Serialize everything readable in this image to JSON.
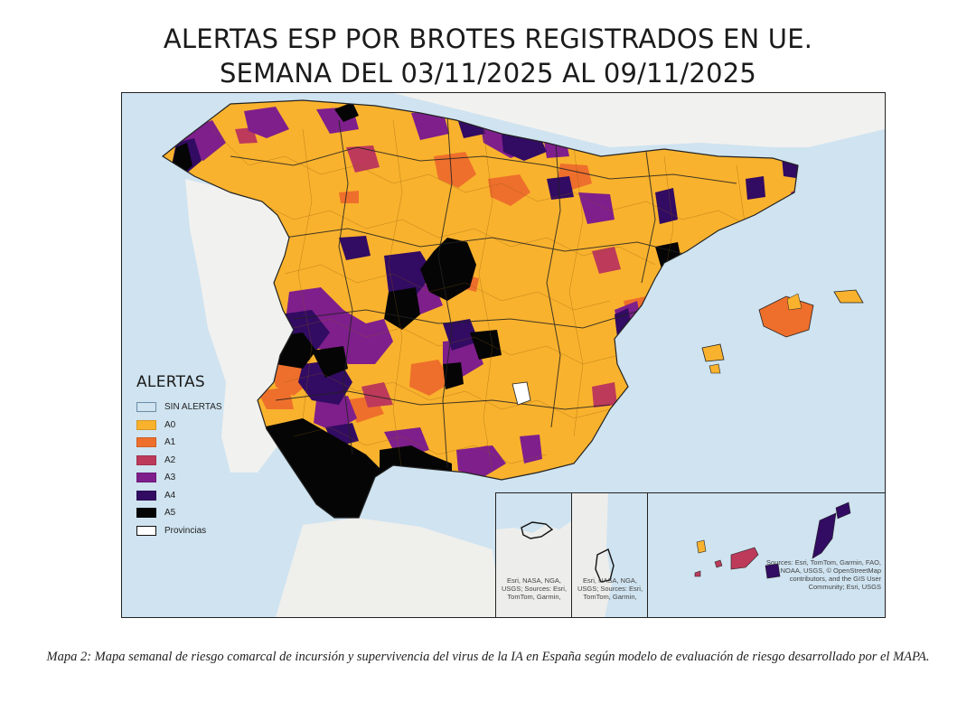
{
  "title_line1": "ALERTAS ESP POR BROTES REGISTRADOS EN UE.",
  "title_line2": "SEMANA DEL 03/11/2025 AL 09/11/2025",
  "legend": {
    "title": "ALERTAS",
    "items": [
      {
        "label": "SIN ALERTAS",
        "color": "#cfe3f0"
      },
      {
        "label": "A0",
        "color": "#f9b22d"
      },
      {
        "label": "A1",
        "color": "#ee6f2c"
      },
      {
        "label": "A2",
        "color": "#bd3a5b"
      },
      {
        "label": "A3",
        "color": "#7e1f8c"
      },
      {
        "label": "A4",
        "color": "#320b62"
      },
      {
        "label": "A5",
        "color": "#050505"
      },
      {
        "label": "Provincias",
        "color": "#ffffff"
      }
    ]
  },
  "insets": {
    "ceuta_attribution": "Esri, NASA, NGA, USGS; Sources: Esri, TomTom, Garmin,",
    "melilla_attribution": "Esri, NASA, NGA, USGS; Sources: Esri, TomTom, Garmin,",
    "canarias_attribution": "Sources: Esri, TomTom, Garmin, FAO, NOAA, USGS, © OpenStreetMap contributors, and the GIS User Community; Esri, USGS"
  },
  "caption": "Mapa 2: Mapa semanal de riesgo comarcal de incursión y supervivencia del virus de la IA en España según modelo de evaluación de riesgo desarrollado por el MAPA."
}
